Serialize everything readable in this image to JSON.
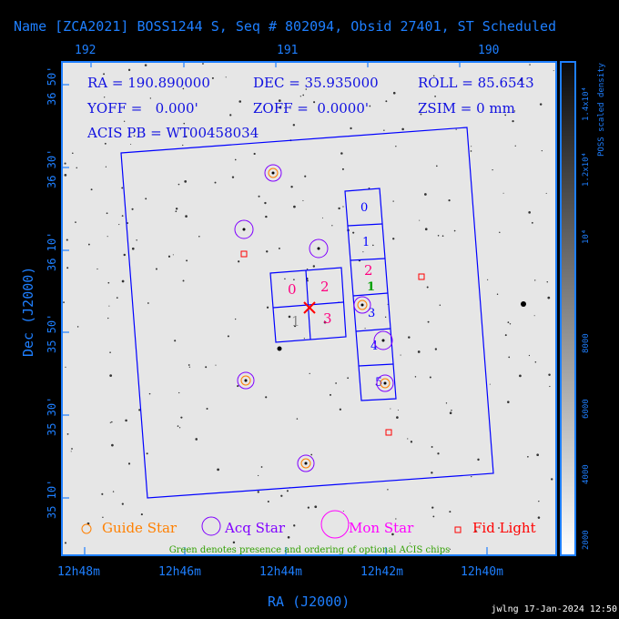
{
  "title": "Name [ZCA2021] BOSS1244 S, Seq # 802094, Obsid 27401, ST Scheduled",
  "top_axis_ticks": [
    "192",
    "191",
    "190"
  ],
  "bottom_axis_ticks": [
    "12h48m",
    "12h46m",
    "12h44m",
    "12h42m",
    "12h40m"
  ],
  "left_axis_ticks": [
    "36 50'",
    "36 30'",
    "36 10'",
    "35 50'",
    "35 30'",
    "35 10'"
  ],
  "xlabel": "RA (J2000)",
  "ylabel": "Dec (J2000)",
  "info": {
    "ra": "RA = 190.890000",
    "dec": "DEC = 35.935000",
    "roll": "ROLL = 85.6543",
    "yoff": "YOFF =   0.000'",
    "zoff": "ZOFF =  0.0000'",
    "zsim": "ZSIM = 0 mm",
    "acis_pb": "ACIS PB = WT00458034"
  },
  "chips": {
    "i_array": [
      "0",
      "2",
      "1",
      "3"
    ],
    "s_array": [
      "0",
      "1",
      "2",
      "3",
      "4",
      "5"
    ],
    "optional": "1"
  },
  "legend": {
    "guide": "Guide Star",
    "acq": "Acq Star",
    "mon": "Mon Star",
    "fid": "Fid Light",
    "note": "Green denotes presence and ordering of optional ACIS chips"
  },
  "colorbar": {
    "label": "POSS scaled density",
    "ticks": [
      "2000",
      "4000",
      "6000",
      "8000",
      "10⁴",
      "1.2x10⁴",
      "1.4x10⁴"
    ]
  },
  "colors": {
    "guide": "#ff8000",
    "acq": "#8000ff",
    "mon": "#ff00ff",
    "fid": "#ff0000",
    "chips": "#0000ff",
    "chip_label": "#ff0080",
    "optional": "#00a000",
    "axis": "#1e7fff"
  },
  "stamp": "jwlng 17-Jan-2024 12:50"
}
